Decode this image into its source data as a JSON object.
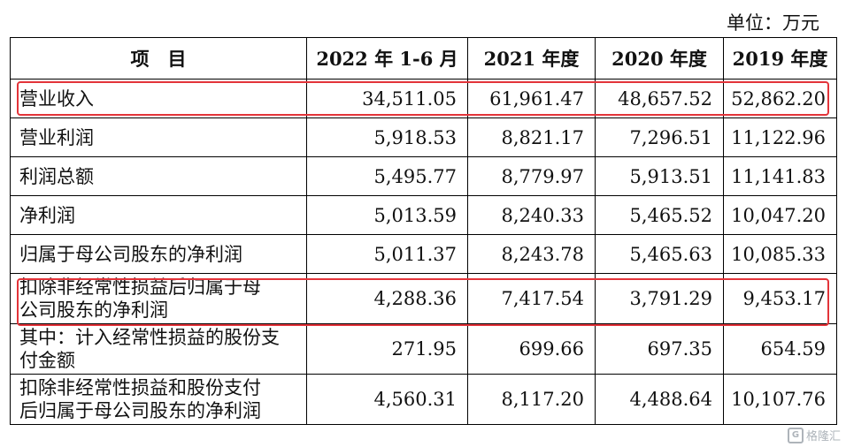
{
  "unit_label": "单位：万元",
  "headers": [
    "项　目",
    "2022 年 1-6 月",
    "2021 年度",
    "2020 年度",
    "2019 年度"
  ],
  "rows": [
    {
      "label": "营业收入",
      "values": [
        "34,511.05",
        "61,961.47",
        "48,657.52",
        "52,862.20"
      ]
    },
    {
      "label": "营业利润",
      "values": [
        "5,918.53",
        "8,821.17",
        "7,296.51",
        "11,122.96"
      ]
    },
    {
      "label": "利润总额",
      "values": [
        "5,495.77",
        "8,779.97",
        "5,913.51",
        "11,141.83"
      ]
    },
    {
      "label": "净利润",
      "values": [
        "5,013.59",
        "8,240.33",
        "5,465.52",
        "10,047.20"
      ]
    },
    {
      "label": "归属于母公司股东的净利润",
      "values": [
        "5,011.37",
        "8,243.78",
        "5,465.63",
        "10,085.33"
      ]
    },
    {
      "label_lines": [
        "扣除非经常性损益后归属于母",
        "公司股东的净利润"
      ],
      "values": [
        "4,288.36",
        "7,417.54",
        "3,791.29",
        "9,453.17"
      ]
    },
    {
      "label_lines": [
        "其中：计入经常性损益的股份支",
        "付金额"
      ],
      "values": [
        "271.95",
        "699.66",
        "697.35",
        "654.59"
      ]
    },
    {
      "label_lines": [
        "扣除非经常性损益和股份支付",
        "后归属于母公司股东的净利润"
      ],
      "values": [
        "4,560.31",
        "8,117.20",
        "4,488.64",
        "10,107.76"
      ]
    }
  ],
  "highlight_color": "#e3343a",
  "watermark": "格隆汇"
}
